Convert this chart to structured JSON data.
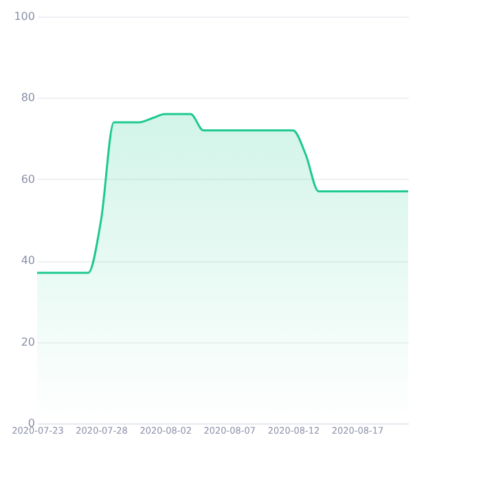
{
  "chart_data": {
    "type": "area",
    "x": [
      "2020-07-23",
      "2020-07-24",
      "2020-07-25",
      "2020-07-26",
      "2020-07-27",
      "2020-07-28",
      "2020-07-29",
      "2020-07-30",
      "2020-07-31",
      "2020-08-01",
      "2020-08-02",
      "2020-08-03",
      "2020-08-04",
      "2020-08-05",
      "2020-08-06",
      "2020-08-07",
      "2020-08-08",
      "2020-08-09",
      "2020-08-10",
      "2020-08-11",
      "2020-08-12",
      "2020-08-13",
      "2020-08-14",
      "2020-08-15",
      "2020-08-16",
      "2020-08-17",
      "2020-08-18",
      "2020-08-19",
      "2020-08-20",
      "2020-08-21"
    ],
    "series": [
      {
        "color": "#1dc98f",
        "values": [
          37,
          37,
          37,
          37,
          37,
          50,
          74,
          74,
          74,
          75,
          76,
          76,
          76,
          72,
          72,
          72,
          72,
          72,
          72,
          72,
          72,
          66,
          57,
          57,
          57,
          57,
          57,
          57,
          57,
          57
        ]
      }
    ],
    "xlim": [
      "2020-07-23",
      "2020-08-21"
    ],
    "xticks": [
      "2020-07-23",
      "2020-07-28",
      "2020-08-02",
      "2020-08-07",
      "2020-08-12",
      "2020-08-17"
    ],
    "ylim": [
      0,
      100
    ],
    "yticks": [
      0,
      20,
      40,
      60,
      80,
      100
    ],
    "grid": "y"
  }
}
